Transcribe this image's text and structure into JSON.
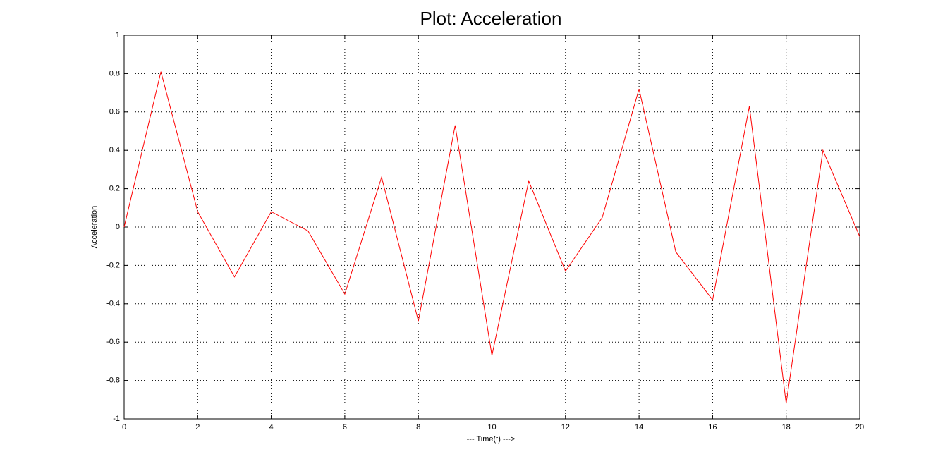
{
  "chart_data": {
    "type": "line",
    "title": "Plot: Acceleration",
    "xlabel": "--- Time(t) --->",
    "ylabel": "Acceleration",
    "x": [
      0,
      1,
      2,
      3,
      4,
      5,
      6,
      7,
      8,
      9,
      10,
      11,
      12,
      13,
      14,
      15,
      16,
      17,
      18,
      19,
      20
    ],
    "values": [
      0.0,
      0.81,
      0.08,
      -0.26,
      0.08,
      -0.02,
      -0.35,
      0.26,
      -0.49,
      0.53,
      -0.67,
      0.24,
      -0.23,
      0.05,
      0.72,
      -0.13,
      -0.38,
      0.63,
      -0.92,
      0.4,
      -0.05
    ],
    "color": "#ff0000",
    "xlim": [
      0,
      20
    ],
    "xticks": [
      0,
      2,
      4,
      6,
      8,
      10,
      12,
      14,
      16,
      18,
      20
    ],
    "ylim": [
      -1,
      1
    ],
    "yticks": [
      -1,
      -0.8,
      -0.6,
      -0.4,
      -0.2,
      0,
      0.2,
      0.4,
      0.6,
      0.8,
      1
    ],
    "grid": true
  }
}
